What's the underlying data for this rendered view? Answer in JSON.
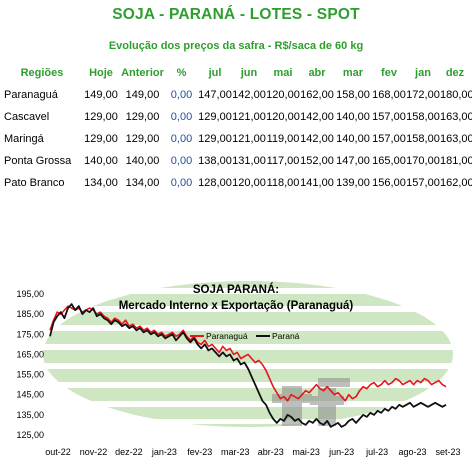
{
  "title": "SOJA - PARANÁ - LOTES - SPOT",
  "subtitle": "Evolução dos preços da safra - R$/saca de 60 kg",
  "table": {
    "headers": [
      "Regiões",
      "Hoje",
      "Anterior",
      "%",
      "jul",
      "jun",
      "mai",
      "abr",
      "mar",
      "fev",
      "jan",
      "dez"
    ],
    "rows": [
      [
        "Paranaguá",
        "149,00",
        "149,00",
        "0,00",
        "147,00",
        "142,00",
        "120,00",
        "162,00",
        "158,00",
        "168,00",
        "172,00",
        "180,00"
      ],
      [
        "Cascavel",
        "129,00",
        "129,00",
        "0,00",
        "129,00",
        "121,00",
        "120,00",
        "142,00",
        "140,00",
        "157,00",
        "158,00",
        "163,00"
      ],
      [
        "Maringá",
        "129,00",
        "129,00",
        "0,00",
        "129,00",
        "121,00",
        "119,00",
        "142,00",
        "140,00",
        "157,00",
        "158,00",
        "163,00"
      ],
      [
        "Ponta Grossa",
        "140,00",
        "140,00",
        "0,00",
        "138,00",
        "131,00",
        "117,00",
        "152,00",
        "147,00",
        "165,00",
        "170,00",
        "181,00"
      ],
      [
        "Pato Branco",
        "134,00",
        "134,00",
        "0,00",
        "128,00",
        "120,00",
        "118,00",
        "141,00",
        "139,00",
        "156,00",
        "157,00",
        "162,00"
      ]
    ]
  },
  "chart_data": {
    "type": "line",
    "title": "SOJA PARANÁ:",
    "subtitle": "Mercado Interno x Exportação (Paranaguá)",
    "ylim": [
      125,
      195
    ],
    "yticks": [
      "195,00",
      "185,00",
      "175,00",
      "165,00",
      "155,00",
      "145,00",
      "135,00",
      "125,00"
    ],
    "yvalues": [
      195,
      185,
      175,
      165,
      155,
      145,
      135,
      125
    ],
    "xticks": [
      "out-22",
      "nov-22",
      "dez-22",
      "jan-23",
      "fev-23",
      "mar-23",
      "abr-23",
      "mai-23",
      "jun-23",
      "jul-23",
      "ago-23",
      "set-23"
    ],
    "legend_position": "top-center",
    "watermark": "tf",
    "series": [
      {
        "name": "Paranaguá",
        "color": "#e8141c",
        "values": [
          177,
          182,
          186,
          185,
          187,
          189,
          188,
          187,
          188,
          186,
          187,
          188,
          187,
          185,
          186,
          184,
          183,
          181,
          183,
          182,
          180,
          182,
          179,
          180,
          178,
          179,
          177,
          178,
          176,
          177,
          175,
          176,
          174,
          175,
          176,
          174,
          175,
          177,
          174,
          172,
          174,
          171,
          170,
          172,
          169,
          170,
          168,
          166,
          169,
          167,
          168,
          165,
          166,
          163,
          164,
          165,
          163,
          161,
          162,
          160,
          157,
          153,
          149,
          146,
          143,
          144,
          142,
          145,
          144,
          143,
          145,
          147,
          146,
          148,
          150,
          148,
          147,
          149,
          147,
          145,
          146,
          144,
          142,
          145,
          143,
          144,
          147,
          149,
          148,
          150,
          151,
          149,
          150,
          152,
          150,
          151,
          153,
          152,
          150,
          151,
          152,
          150,
          152,
          151,
          153,
          152,
          150,
          151,
          152,
          150,
          149
        ]
      },
      {
        "name": "Paraná",
        "color": "#111111",
        "values": [
          174,
          181,
          184,
          186,
          183,
          188,
          190,
          187,
          189,
          185,
          187,
          186,
          188,
          184,
          185,
          183,
          182,
          180,
          182,
          181,
          179,
          180,
          178,
          179,
          177,
          178,
          176,
          177,
          175,
          176,
          174,
          175,
          173,
          174,
          175,
          172,
          174,
          176,
          173,
          171,
          173,
          170,
          168,
          170,
          167,
          168,
          166,
          164,
          166,
          164,
          165,
          162,
          163,
          160,
          161,
          158,
          154,
          150,
          146,
          142,
          140,
          136,
          133,
          131,
          133,
          132,
          135,
          134,
          132,
          133,
          131,
          130,
          132,
          131,
          133,
          131,
          130,
          132,
          129,
          130,
          131,
          129,
          130,
          132,
          133,
          131,
          133,
          135,
          134,
          136,
          135,
          137,
          136,
          138,
          137,
          139,
          138,
          140,
          139,
          140,
          141,
          139,
          140,
          141,
          140,
          139,
          140,
          141,
          140,
          139,
          140
        ]
      }
    ]
  }
}
